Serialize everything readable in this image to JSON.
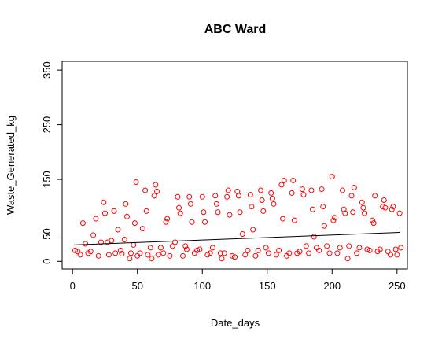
{
  "chart_data": {
    "type": "scatter",
    "title": "ABC Ward",
    "x_label": "Date_days",
    "y_label": "Waste_Generated_kg",
    "color": "#ff0000",
    "x": [
      2,
      4,
      6,
      8,
      10,
      12,
      14,
      16,
      18,
      20,
      22,
      24,
      25,
      27,
      28,
      30,
      32,
      33,
      35,
      37,
      38,
      40,
      41,
      42,
      44,
      45,
      47,
      48,
      49,
      50,
      52,
      54,
      56,
      57,
      58,
      60,
      61,
      63,
      64,
      65,
      66,
      68,
      70,
      72,
      73,
      75,
      77,
      79,
      81,
      82,
      83,
      85,
      87,
      88,
      90,
      91,
      92,
      94,
      96,
      98,
      100,
      101,
      102,
      104,
      106,
      108,
      110,
      111,
      112,
      114,
      115,
      117,
      119,
      120,
      121,
      123,
      125,
      127,
      128,
      129,
      131,
      133,
      135,
      137,
      138,
      139,
      141,
      143,
      145,
      146,
      147,
      149,
      151,
      153,
      154,
      155,
      157,
      159,
      161,
      162,
      163,
      165,
      167,
      169,
      170,
      171,
      173,
      175,
      177,
      178,
      180,
      182,
      184,
      185,
      186,
      188,
      190,
      192,
      193,
      194,
      196,
      198,
      200,
      201,
      202,
      204,
      206,
      208,
      209,
      210,
      212,
      213,
      215,
      216,
      217,
      219,
      221,
      223,
      224,
      225,
      227,
      229,
      231,
      232,
      233,
      235,
      237,
      239,
      240,
      241,
      243,
      245,
      246,
      247,
      249,
      250,
      252,
      253
    ],
    "values": [
      20,
      18,
      12,
      70,
      32,
      15,
      18,
      48,
      78,
      10,
      35,
      108,
      88,
      35,
      12,
      38,
      92,
      15,
      58,
      20,
      14,
      40,
      105,
      82,
      5,
      15,
      30,
      70,
      145,
      10,
      15,
      60,
      130,
      92,
      12,
      25,
      5,
      120,
      140,
      128,
      12,
      25,
      15,
      72,
      78,
      10,
      28,
      35,
      118,
      98,
      88,
      10,
      28,
      22,
      118,
      105,
      72,
      15,
      20,
      22,
      118,
      90,
      72,
      12,
      15,
      25,
      120,
      105,
      90,
      15,
      5,
      15,
      118,
      130,
      85,
      10,
      8,
      128,
      120,
      90,
      50,
      12,
      20,
      122,
      100,
      58,
      10,
      20,
      130,
      112,
      92,
      25,
      15,
      125,
      115,
      105,
      12,
      20,
      140,
      78,
      148,
      10,
      15,
      125,
      148,
      75,
      15,
      18,
      132,
      122,
      28,
      15,
      130,
      95,
      45,
      25,
      20,
      132,
      100,
      65,
      28,
      15,
      155,
      75,
      80,
      15,
      25,
      130,
      95,
      88,
      5,
      28,
      120,
      90,
      135,
      15,
      25,
      108,
      98,
      88,
      22,
      20,
      75,
      70,
      120,
      18,
      22,
      100,
      112,
      98,
      18,
      12,
      95,
      100,
      22,
      12,
      88,
      25
    ],
    "fit": {
      "x": [
        1,
        252
      ],
      "y": [
        30,
        53
      ]
    },
    "xlim": [
      -8,
      258
    ],
    "ylim": [
      -14,
      366
    ],
    "xticks": [
      0,
      50,
      100,
      150,
      200,
      250
    ],
    "yticks": [
      0,
      50,
      150,
      250,
      350
    ]
  }
}
